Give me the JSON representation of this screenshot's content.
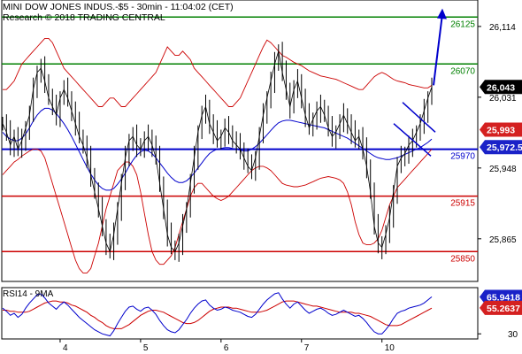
{
  "header": {
    "line1": "MINI DOW JONES INDUS.-$5 - 30min - 11:04:02 (CET)",
    "line2": "Research © 2018 TRADING CENTRAL"
  },
  "colors": {
    "price": "#000000",
    "bollinger": "#cc0000",
    "moving_average": "#0000cc",
    "resistance": "#008000",
    "support": "#cc0000",
    "pivot": "#0000cc",
    "projection": "#0000cc",
    "rsi": "#0000cc",
    "rsi_ma": "#cc0000"
  },
  "chart_data": [
    {
      "type": "line",
      "title": "MINI DOW JONES INDUS.-$5 - 30min - 11:04:02 (CET)",
      "ylim": [
        25815,
        26145
      ],
      "y_ticks": [
        26114,
        26031,
        25948,
        25865
      ],
      "x_ticks": [
        "4",
        "5",
        "6",
        "7",
        "10"
      ],
      "last_price": 26043,
      "current_labels": [
        {
          "name": "upper",
          "value": 25993
        },
        {
          "name": "pivot",
          "value": "25,972.5"
        }
      ],
      "levels": [
        {
          "name": "26125",
          "value": 26125,
          "role": "resistance"
        },
        {
          "name": "26070",
          "value": 26070,
          "role": "resistance"
        },
        {
          "name": "25970",
          "value": 25970,
          "role": "pivot"
        },
        {
          "name": "25915",
          "value": 25915,
          "role": "support"
        },
        {
          "name": "25850",
          "value": 25850,
          "role": "support"
        }
      ],
      "series": [
        {
          "key": "price",
          "values": [
            26000,
            25990,
            25975,
            25985,
            25970,
            25980,
            25995,
            26010,
            26040,
            26060,
            26065,
            26050,
            26030,
            26020,
            26010,
            26030,
            26040,
            26030,
            26015,
            26000,
            25985,
            25975,
            25960,
            25940,
            25920,
            25900,
            25880,
            25860,
            25850,
            25870,
            25900,
            25930,
            25960,
            25980,
            25985,
            25975,
            25970,
            25980,
            25985,
            25975,
            25960,
            25930,
            25900,
            25870,
            25855,
            25850,
            25860,
            25880,
            25900,
            25930,
            25960,
            25990,
            26010,
            26020,
            26000,
            25990,
            25980,
            25985,
            25995,
            25990,
            25980,
            25975,
            25970,
            25960,
            25950,
            25945,
            25960,
            25985,
            26010,
            26030,
            26050,
            26070,
            26085,
            26060,
            26040,
            26020,
            26040,
            26050,
            26030,
            26010,
            25995,
            26005,
            26015,
            26020,
            26010,
            25995,
            25985,
            25990,
            26000,
            26010,
            26000,
            25990,
            25980,
            25985,
            25970,
            25950,
            25920,
            25880,
            25860,
            25855,
            25870,
            25890,
            25920,
            25950,
            25960,
            25965,
            25975,
            25980,
            25990,
            26000,
            26015,
            26030,
            26043
          ]
        },
        {
          "key": "bb_upper",
          "values": [
            26040,
            26040,
            26045,
            26050,
            26060,
            26070,
            26075,
            26080,
            26085,
            26090,
            26095,
            26100,
            26100,
            26095,
            26085,
            26075,
            26065,
            26060,
            26055,
            26050,
            26045,
            26040,
            26035,
            26030,
            26025,
            26020,
            26020,
            26025,
            26030,
            26030,
            26025,
            26020,
            26020,
            26025,
            26030,
            26035,
            26040,
            26045,
            26050,
            26055,
            26060,
            26070,
            26080,
            26090,
            26085,
            26080,
            26080,
            26085,
            26080,
            26075,
            26065,
            26060,
            26055,
            26050,
            26045,
            26040,
            26035,
            26030,
            26025,
            26020,
            26020,
            26025,
            26030,
            26040,
            26050,
            26060,
            26070,
            26080,
            26090,
            26098,
            26095,
            26090,
            26085,
            26080,
            26078,
            26075,
            26072,
            26070,
            26068,
            26065,
            26062,
            26060,
            26058,
            26056,
            26055,
            26054,
            26053,
            26052,
            26050,
            26048,
            26046,
            26044,
            26042,
            26040,
            26040,
            26045,
            26050,
            26055,
            26058,
            26060,
            26058,
            26055,
            26052,
            26050,
            26049,
            26048,
            26046,
            26045,
            26044,
            26043,
            26042,
            26042,
            26045
          ]
        },
        {
          "key": "bb_lower",
          "values": [
            25940,
            25945,
            25950,
            25955,
            25958,
            25962,
            25965,
            25968,
            25970,
            25970,
            25968,
            25960,
            25945,
            25930,
            25915,
            25900,
            25885,
            25870,
            25855,
            25840,
            25830,
            25825,
            25825,
            25830,
            25845,
            25860,
            25880,
            25900,
            25915,
            25930,
            25945,
            25950,
            25955,
            25955,
            25950,
            25940,
            25920,
            25895,
            25870,
            25850,
            25840,
            25835,
            25835,
            25840,
            25845,
            25855,
            25870,
            25885,
            25900,
            25915,
            25925,
            25930,
            25930,
            25925,
            25920,
            25915,
            25912,
            25910,
            25912,
            25915,
            25920,
            25925,
            25930,
            25935,
            25940,
            25945,
            25948,
            25950,
            25950,
            25948,
            25945,
            25940,
            25935,
            25930,
            25928,
            25927,
            25926,
            25926,
            25927,
            25928,
            25930,
            25932,
            25934,
            25936,
            25937,
            25938,
            25937,
            25936,
            25934,
            25930,
            25920,
            25905,
            25885,
            25870,
            25860,
            25858,
            25858,
            25860,
            25865,
            25875,
            25890,
            25905,
            25915,
            25925,
            25930,
            25935,
            25940,
            25945,
            25950,
            25955,
            25960,
            25965,
            25970
          ]
        },
        {
          "key": "ma",
          "values": [
            25990,
            25985,
            25982,
            25980,
            25980,
            25983,
            25988,
            25995,
            26003,
            26010,
            26015,
            26018,
            26018,
            26016,
            26012,
            26006,
            26000,
            25993,
            25985,
            25976,
            25967,
            25958,
            25949,
            25941,
            25934,
            25928,
            25924,
            25922,
            25922,
            25924,
            25929,
            25935,
            25942,
            25950,
            25957,
            25963,
            25967,
            25969,
            25968,
            25965,
            25960,
            25954,
            25948,
            25942,
            25937,
            25933,
            25931,
            25931,
            25933,
            25937,
            25942,
            25948,
            25954,
            25960,
            25965,
            25968,
            25970,
            25971,
            25972,
            25972,
            25971,
            25970,
            25969,
            25968,
            25968,
            25970,
            25973,
            25977,
            25982,
            25987,
            25992,
            25997,
            26001,
            26003,
            26004,
            26004,
            26003,
            26002,
            26001,
            26000,
            25999,
            25998,
            25997,
            25996,
            25995,
            25993,
            25991,
            25989,
            25987,
            25985,
            25983,
            25980,
            25977,
            25974,
            25971,
            25968,
            25965,
            25962,
            25960,
            25959,
            25958,
            25958,
            25959,
            25960,
            25962,
            25964,
            25966,
            25968,
            25970,
            25972,
            25975,
            25978,
            25982
          ]
        }
      ]
    },
    {
      "type": "line",
      "title": "RSI14 - 9MA",
      "ylim": [
        25,
        75
      ],
      "y_ticks": [
        30
      ],
      "last_labels": [
        {
          "name": "RSI14",
          "value": "65.9418"
        },
        {
          "name": "9MA",
          "value": "55.2637"
        }
      ],
      "series": [
        {
          "key": "rsi",
          "values": [
            55,
            52,
            48,
            50,
            46,
            49,
            55,
            60,
            64,
            68,
            69,
            65,
            60,
            57,
            54,
            58,
            61,
            58,
            54,
            50,
            46,
            43,
            40,
            37,
            34,
            32,
            30,
            29,
            28,
            33,
            40,
            46,
            52,
            56,
            57,
            54,
            52,
            55,
            56,
            53,
            49,
            43,
            38,
            34,
            32,
            31,
            34,
            39,
            44,
            50,
            55,
            59,
            62,
            63,
            58,
            55,
            53,
            54,
            56,
            55,
            53,
            52,
            51,
            49,
            47,
            46,
            49,
            54,
            59,
            63,
            66,
            69,
            70,
            64,
            59,
            55,
            59,
            61,
            57,
            53,
            50,
            52,
            54,
            55,
            53,
            50,
            48,
            49,
            51,
            53,
            51,
            49,
            47,
            48,
            45,
            41,
            36,
            32,
            30,
            30,
            34,
            39,
            45,
            50,
            52,
            53,
            55,
            56,
            57,
            58,
            60,
            63,
            66
          ]
        },
        {
          "key": "rsi_ma",
          "values": [
            53,
            53,
            52,
            52,
            51,
            51,
            51,
            52,
            54,
            56,
            58,
            60,
            61,
            62,
            62,
            61,
            61,
            60,
            58,
            57,
            55,
            53,
            51,
            48,
            46,
            43,
            41,
            38,
            36,
            35,
            35,
            35,
            37,
            39,
            42,
            45,
            48,
            50,
            52,
            53,
            53,
            52,
            51,
            49,
            47,
            45,
            43,
            41,
            40,
            40,
            41,
            43,
            46,
            49,
            52,
            54,
            55,
            56,
            56,
            56,
            55,
            55,
            54,
            53,
            52,
            51,
            51,
            51,
            52,
            53,
            55,
            57,
            59,
            61,
            62,
            62,
            62,
            61,
            60,
            59,
            58,
            57,
            57,
            56,
            55,
            54,
            53,
            52,
            51,
            51,
            51,
            51,
            50,
            50,
            49,
            48,
            47,
            45,
            43,
            41,
            39,
            38,
            38,
            38,
            39,
            41,
            43,
            45,
            47,
            49,
            51,
            53,
            55
          ]
        }
      ]
    }
  ]
}
